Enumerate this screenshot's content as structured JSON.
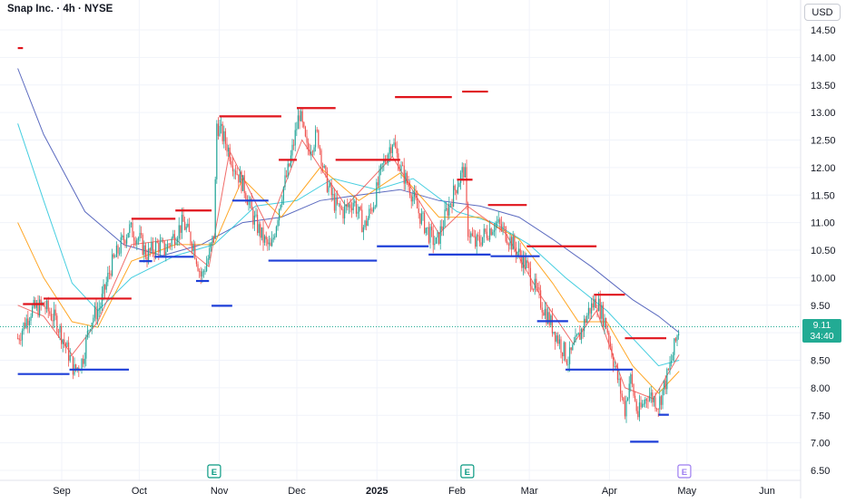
{
  "header": {
    "title": "Snap Inc. · 4h · NYSE",
    "currency": "USD"
  },
  "last_price": {
    "value": "9.11",
    "countdown": "34:40"
  },
  "chart_data": {
    "type": "candlestick",
    "title": "Snap Inc. · 4h · NYSE",
    "y_ticks": [
      "14.50",
      "14.00",
      "13.50",
      "13.00",
      "12.50",
      "12.00",
      "11.50",
      "11.00",
      "10.50",
      "10.00",
      "9.50",
      "9.00",
      "8.50",
      "8.00",
      "7.50",
      "7.00",
      "6.50"
    ],
    "x_ticks": [
      "Sep",
      "Oct",
      "Nov",
      "Dec",
      "2025",
      "Feb",
      "Mar",
      "Apr",
      "May",
      "Jun"
    ],
    "ylim": [
      6.5,
      14.5
    ],
    "grid": true,
    "price_path": [
      [
        "Aug 15",
        8.9
      ],
      [
        "Aug 20",
        9.4
      ],
      [
        "Aug 25",
        9.5
      ],
      [
        "Aug 30",
        9.2
      ],
      [
        "Sep 3",
        8.7
      ],
      [
        "Sep 6",
        8.3
      ],
      [
        "Sep 9",
        8.5
      ],
      [
        "Sep 12",
        9.2
      ],
      [
        "Sep 16",
        9.5
      ],
      [
        "Sep 20",
        10.2
      ],
      [
        "Sep 24",
        10.6
      ],
      [
        "Sep 27",
        10.9
      ],
      [
        "Oct 1",
        10.7
      ],
      [
        "Oct 4",
        10.4
      ],
      [
        "Oct 8",
        10.6
      ],
      [
        "Oct 11",
        10.5
      ],
      [
        "Oct 15",
        10.8
      ],
      [
        "Oct 18",
        11.0
      ],
      [
        "Oct 22",
        10.6
      ],
      [
        "Oct 25",
        10.0
      ],
      [
        "Oct 28",
        10.4
      ],
      [
        "Oct 30",
        10.8
      ],
      [
        "Oct 31",
        12.8
      ],
      [
        "Nov 4",
        12.4
      ],
      [
        "Nov 7",
        12.0
      ],
      [
        "Nov 11",
        11.6
      ],
      [
        "Nov 14",
        11.1
      ],
      [
        "Nov 18",
        10.7
      ],
      [
        "Nov 21",
        10.5
      ],
      [
        "Nov 25",
        11.5
      ],
      [
        "Nov 28",
        12.0
      ],
      [
        "Dec 2",
        13.0
      ],
      [
        "Dec 5",
        12.3
      ],
      [
        "Dec 9",
        12.6
      ],
      [
        "Dec 12",
        11.8
      ],
      [
        "Dec 16",
        11.3
      ],
      [
        "Dec 19",
        11.2
      ],
      [
        "Dec 23",
        11.4
      ],
      [
        "Dec 27",
        10.9
      ],
      [
        "Dec 31",
        11.4
      ],
      [
        "Jan 3",
        12.0
      ],
      [
        "Jan 7",
        12.5
      ],
      [
        "Jan 10",
        12.0
      ],
      [
        "Jan 14",
        11.6
      ],
      [
        "Jan 17",
        11.2
      ],
      [
        "Jan 21",
        10.8
      ],
      [
        "Jan 24",
        10.6
      ],
      [
        "Jan 28",
        11.2
      ],
      [
        "Feb 1",
        11.7
      ],
      [
        "Feb 4",
        12.0
      ],
      [
        "Feb 5",
        10.9
      ],
      [
        "Feb 8",
        10.6
      ],
      [
        "Feb 12",
        10.8
      ],
      [
        "Feb 16",
        11.0
      ],
      [
        "Feb 20",
        10.8
      ],
      [
        "Feb 24",
        10.5
      ],
      [
        "Feb 28",
        10.2
      ],
      [
        "Mar 4",
        9.7
      ],
      [
        "Mar 8",
        9.3
      ],
      [
        "Mar 12",
        8.9
      ],
      [
        "Mar 16",
        8.5
      ],
      [
        "Mar 20",
        8.9
      ],
      [
        "Mar 24",
        9.4
      ],
      [
        "Mar 27",
        9.6
      ],
      [
        "Mar 31",
        9.1
      ],
      [
        "Apr 3",
        8.4
      ],
      [
        "Apr 7",
        7.6
      ],
      [
        "Apr 9",
        8.2
      ],
      [
        "Apr 12",
        7.5
      ],
      [
        "Apr 16",
        7.9
      ],
      [
        "Apr 20",
        7.7
      ],
      [
        "Apr 24",
        8.3
      ],
      [
        "Apr 28",
        9.11
      ]
    ],
    "resistance_levels": [
      {
        "from": "Aug 15",
        "to": "Aug 17",
        "price": 14.17
      },
      {
        "from": "Aug 17",
        "to": "Aug 25",
        "price": 9.52
      },
      {
        "from": "Aug 25",
        "to": "Sep 28",
        "price": 9.62
      },
      {
        "from": "Sep 28",
        "to": "Oct 15",
        "price": 11.07
      },
      {
        "from": "Oct 15",
        "to": "Oct 29",
        "price": 11.22
      },
      {
        "from": "Nov 1",
        "to": "Nov 25",
        "price": 12.93
      },
      {
        "from": "Nov 24",
        "to": "Dec 1",
        "price": 12.14
      },
      {
        "from": "Dec 1",
        "to": "Dec 16",
        "price": 13.08
      },
      {
        "from": "Dec 16",
        "to": "Jan 10",
        "price": 12.14
      },
      {
        "from": "Jan 8",
        "to": "Jan 30",
        "price": 13.28
      },
      {
        "from": "Feb 1",
        "to": "Feb 7",
        "price": 11.78
      },
      {
        "from": "Feb 3",
        "to": "Feb 13",
        "price": 13.38
      },
      {
        "from": "Feb 13",
        "to": "Feb 28",
        "price": 11.32
      },
      {
        "from": "Feb 28",
        "to": "Mar 27",
        "price": 10.57
      },
      {
        "from": "Mar 26",
        "to": "Apr 7",
        "price": 9.69
      },
      {
        "from": "Apr 7",
        "to": "Apr 23",
        "price": 8.9
      }
    ],
    "support_levels": [
      {
        "from": "Aug 15",
        "to": "Sep 4",
        "price": 8.25
      },
      {
        "from": "Sep 4",
        "to": "Sep 27",
        "price": 8.33
      },
      {
        "from": "Oct 1",
        "to": "Oct 6",
        "price": 10.3
      },
      {
        "from": "Oct 7",
        "to": "Oct 22",
        "price": 10.38
      },
      {
        "from": "Oct 23",
        "to": "Oct 28",
        "price": 9.94
      },
      {
        "from": "Oct 29",
        "to": "Nov 6",
        "price": 9.49
      },
      {
        "from": "Nov 6",
        "to": "Nov 20",
        "price": 11.4
      },
      {
        "from": "Nov 20",
        "to": "Jan 1",
        "price": 10.31
      },
      {
        "from": "Jan 1",
        "to": "Jan 21",
        "price": 10.57
      },
      {
        "from": "Jan 21",
        "to": "Feb 14",
        "price": 10.42
      },
      {
        "from": "Feb 14",
        "to": "Mar 5",
        "price": 10.39
      },
      {
        "from": "Mar 4",
        "to": "Mar 16",
        "price": 9.21
      },
      {
        "from": "Mar 15",
        "to": "Apr 10",
        "price": 8.33
      },
      {
        "from": "Apr 9",
        "to": "Apr 20",
        "price": 7.02
      },
      {
        "from": "Apr 20",
        "to": "Apr 24",
        "price": 7.51
      }
    ],
    "moving_averages": [
      {
        "color": "#3f51b5",
        "values": [
          [
            "Aug 15",
            13.8
          ],
          [
            "Aug 25",
            12.6
          ],
          [
            "Sep 10",
            11.2
          ],
          [
            "Sep 25",
            10.6
          ],
          [
            "Oct 10",
            10.4
          ],
          [
            "Oct 25",
            10.6
          ],
          [
            "Nov 10",
            11.0
          ],
          [
            "Nov 25",
            11.1
          ],
          [
            "Dec 10",
            11.4
          ],
          [
            "Dec 25",
            11.5
          ],
          [
            "Jan 10",
            11.6
          ],
          [
            "Jan 25",
            11.4
          ],
          [
            "Feb 10",
            11.3
          ],
          [
            "Feb 25",
            11.1
          ],
          [
            "Mar 10",
            10.7
          ],
          [
            "Mar 25",
            10.2
          ],
          [
            "Apr 10",
            9.6
          ],
          [
            "Apr 20",
            9.3
          ],
          [
            "Apr 28",
            9.0
          ]
        ]
      },
      {
        "color": "#26c6da",
        "values": [
          [
            "Aug 15",
            12.8
          ],
          [
            "Aug 25",
            11.4
          ],
          [
            "Sep 5",
            9.9
          ],
          [
            "Sep 15",
            9.4
          ],
          [
            "Sep 28",
            10.0
          ],
          [
            "Oct 15",
            10.4
          ],
          [
            "Oct 30",
            10.6
          ],
          [
            "Nov 15",
            11.3
          ],
          [
            "Dec 1",
            11.4
          ],
          [
            "Dec 15",
            11.8
          ],
          [
            "Jan 1",
            11.6
          ],
          [
            "Jan 15",
            11.8
          ],
          [
            "Feb 1",
            11.2
          ],
          [
            "Feb 15",
            11.0
          ],
          [
            "Mar 1",
            10.6
          ],
          [
            "Mar 15",
            10.0
          ],
          [
            "Mar 31",
            9.4
          ],
          [
            "Apr 10",
            8.9
          ],
          [
            "Apr 20",
            8.4
          ],
          [
            "Apr 28",
            8.5
          ]
        ]
      },
      {
        "color": "#ff9800",
        "values": [
          [
            "Aug 15",
            11.0
          ],
          [
            "Aug 25",
            10.0
          ],
          [
            "Sep 5",
            9.2
          ],
          [
            "Sep 15",
            9.1
          ],
          [
            "Sep 28",
            10.3
          ],
          [
            "Oct 15",
            10.6
          ],
          [
            "Oct 30",
            10.6
          ],
          [
            "Nov 10",
            11.8
          ],
          [
            "Nov 25",
            11.1
          ],
          [
            "Dec 10",
            12.0
          ],
          [
            "Dec 25",
            11.4
          ],
          [
            "Jan 10",
            11.9
          ],
          [
            "Jan 25",
            11.1
          ],
          [
            "Feb 10",
            11.1
          ],
          [
            "Feb 25",
            10.7
          ],
          [
            "Mar 10",
            9.9
          ],
          [
            "Mar 20",
            9.2
          ],
          [
            "Mar 31",
            9.2
          ],
          [
            "Apr 10",
            8.4
          ],
          [
            "Apr 20",
            7.9
          ],
          [
            "Apr 28",
            8.3
          ]
        ]
      },
      {
        "color": "#ef5350",
        "values": [
          [
            "Aug 15",
            9.5
          ],
          [
            "Aug 25",
            9.3
          ],
          [
            "Sep 5",
            8.6
          ],
          [
            "Sep 15",
            9.2
          ],
          [
            "Sep 28",
            10.6
          ],
          [
            "Oct 15",
            10.7
          ],
          [
            "Oct 28",
            10.2
          ],
          [
            "Nov 5",
            12.3
          ],
          [
            "Nov 20",
            10.9
          ],
          [
            "Dec 3",
            12.5
          ],
          [
            "Dec 20",
            11.3
          ],
          [
            "Jan 7",
            12.2
          ],
          [
            "Jan 25",
            10.8
          ],
          [
            "Feb 5",
            11.3
          ],
          [
            "Feb 20",
            10.8
          ],
          [
            "Mar 5",
            9.7
          ],
          [
            "Mar 18",
            8.8
          ],
          [
            "Mar 27",
            9.4
          ],
          [
            "Apr 7",
            8.0
          ],
          [
            "Apr 18",
            7.8
          ],
          [
            "Apr 28",
            8.6
          ]
        ]
      }
    ],
    "earnings_markers": [
      "Nov",
      "Feb",
      "May"
    ],
    "earnings_marker_label": "E",
    "last_price": 9.11,
    "current_price_line": true,
    "legend": "none"
  }
}
